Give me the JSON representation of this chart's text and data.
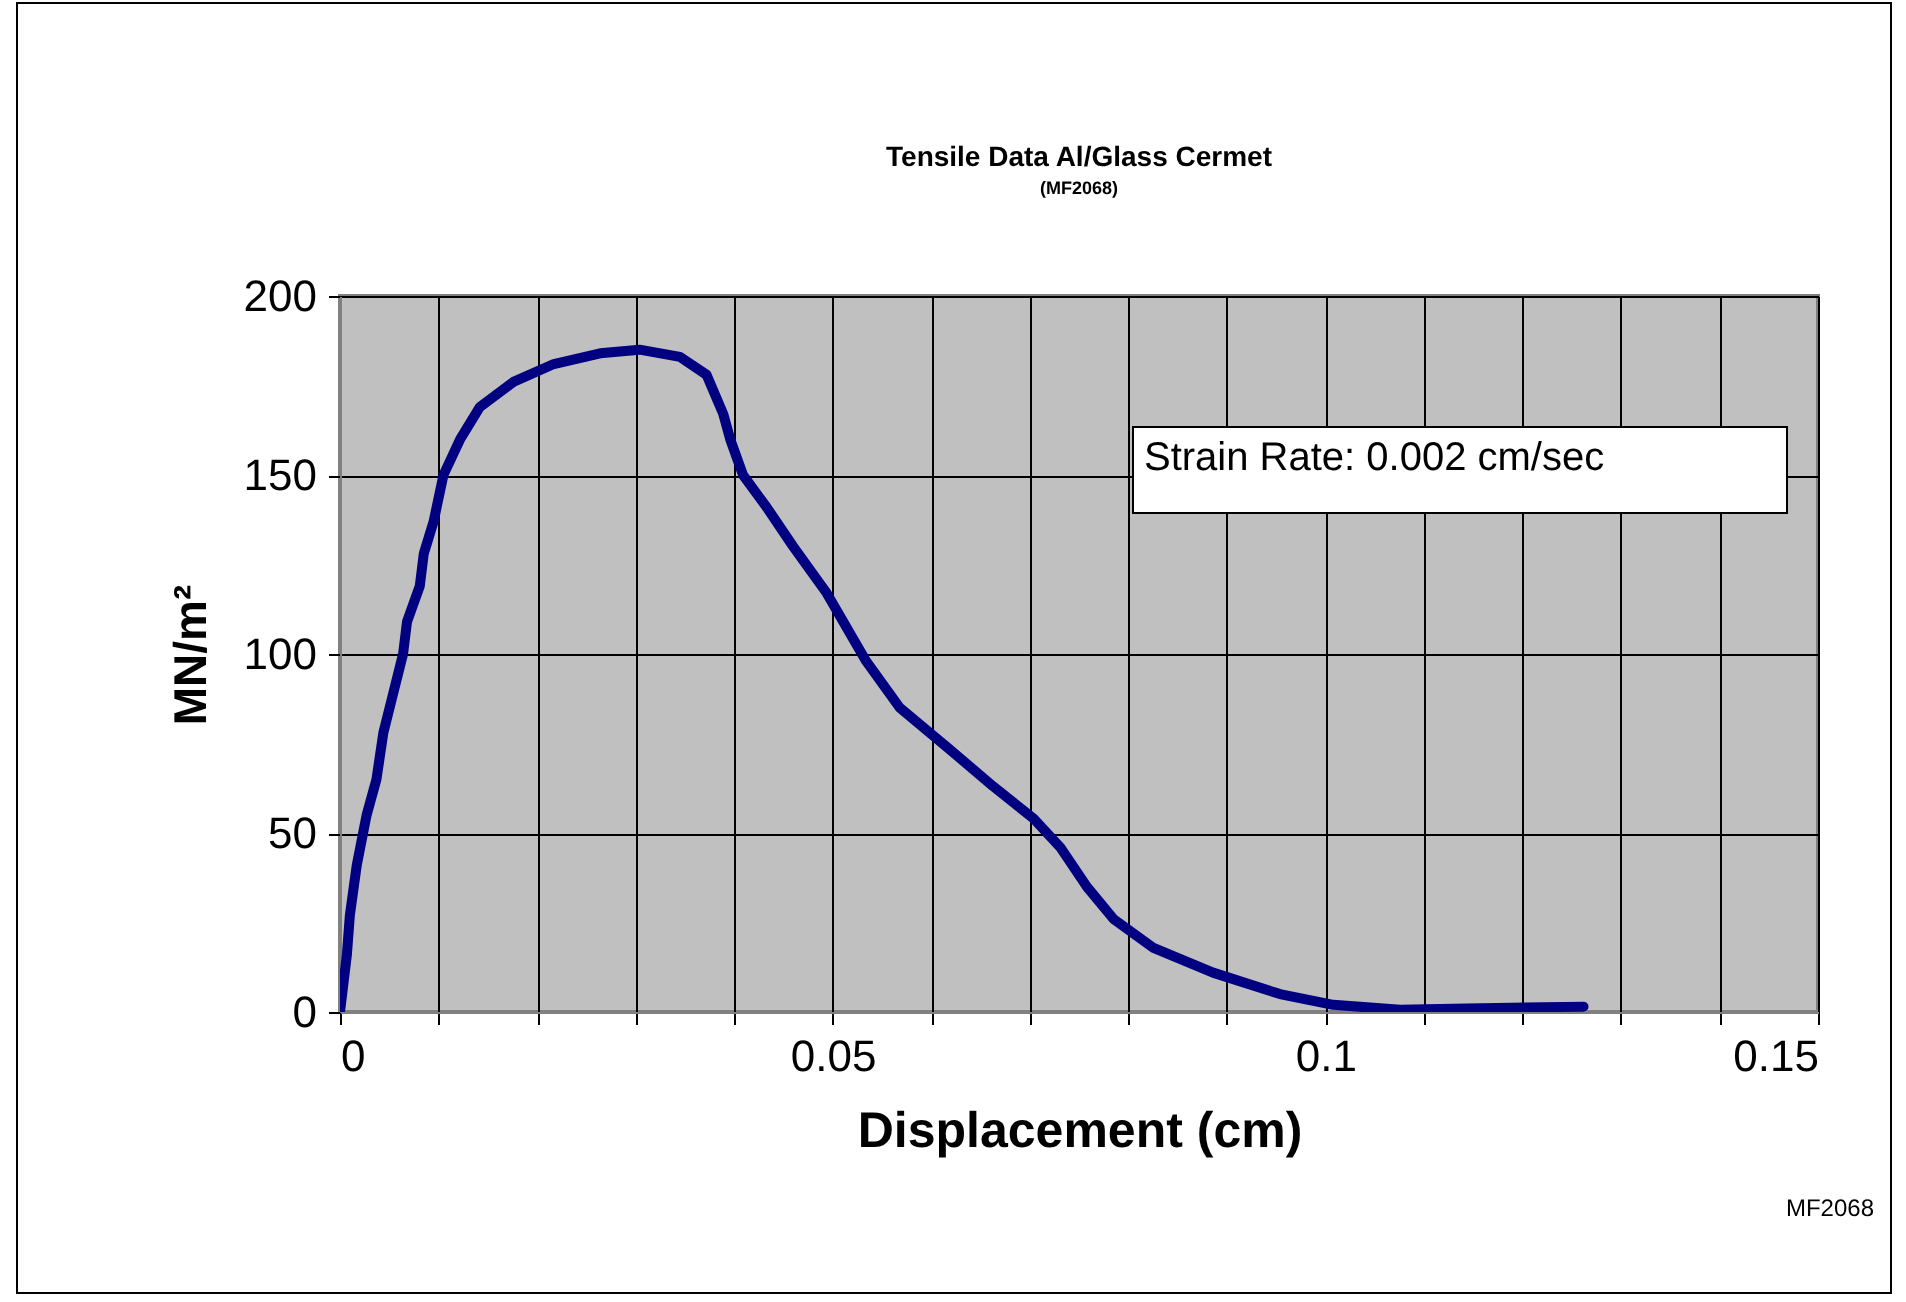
{
  "chart_data": {
    "type": "line",
    "title": "Tensile Data Al/Glass Cermet",
    "subtitle": "(MF2068)",
    "xlabel": "Displacement (cm)",
    "ylabel": "MN/m²",
    "annotations": [
      "Strain Rate: 0.002 cm/sec",
      "MF2068"
    ],
    "xlim": [
      0,
      0.15
    ],
    "ylim": [
      0,
      200
    ],
    "xticks": [
      0,
      {
        "value": 0.01,
        "label": null
      },
      {
        "value": 0.02,
        "label": null
      },
      {
        "value": 0.03,
        "label": null
      },
      {
        "value": 0.04,
        "label": null
      },
      0.05,
      {
        "value": 0.06,
        "label": null
      },
      {
        "value": 0.07,
        "label": null
      },
      {
        "value": 0.08,
        "label": null
      },
      {
        "value": 0.09,
        "label": null
      },
      0.1,
      {
        "value": 0.11,
        "label": null
      },
      {
        "value": 0.12,
        "label": null
      },
      {
        "value": 0.13,
        "label": null
      },
      {
        "value": 0.14,
        "label": null
      },
      0.15
    ],
    "yticks": [
      0,
      50,
      100,
      150,
      200
    ],
    "grid": true,
    "line_style": "solid",
    "series": [
      {
        "color": "#000080",
        "x": [
          0,
          0.0007,
          0.001,
          0.0017,
          0.0027,
          0.0037,
          0.0044,
          0.0054,
          0.0064,
          0.0068,
          0.0081,
          0.0085,
          0.0095,
          0.0105,
          0.0122,
          0.0142,
          0.0176,
          0.0217,
          0.0264,
          0.0304,
          0.0345,
          0.0372,
          0.0389,
          0.0396,
          0.0409,
          0.0433,
          0.046,
          0.0494,
          0.0534,
          0.0568,
          0.0616,
          0.0663,
          0.0704,
          0.0731,
          0.0758,
          0.0785,
          0.0825,
          0.0886,
          0.0954,
          0.1008,
          0.1076,
          0.1143,
          0.1262
        ],
        "values": [
          0,
          16,
          27,
          41,
          55,
          65,
          78,
          89,
          100,
          109,
          119,
          128,
          137,
          150,
          160,
          169,
          176,
          181,
          184,
          185,
          183,
          178,
          167,
          160,
          150,
          141,
          130,
          117,
          98,
          85,
          74,
          63,
          54,
          46,
          35,
          26,
          18,
          11,
          5,
          2,
          0.6,
          1,
          1.5
        ]
      }
    ]
  }
}
